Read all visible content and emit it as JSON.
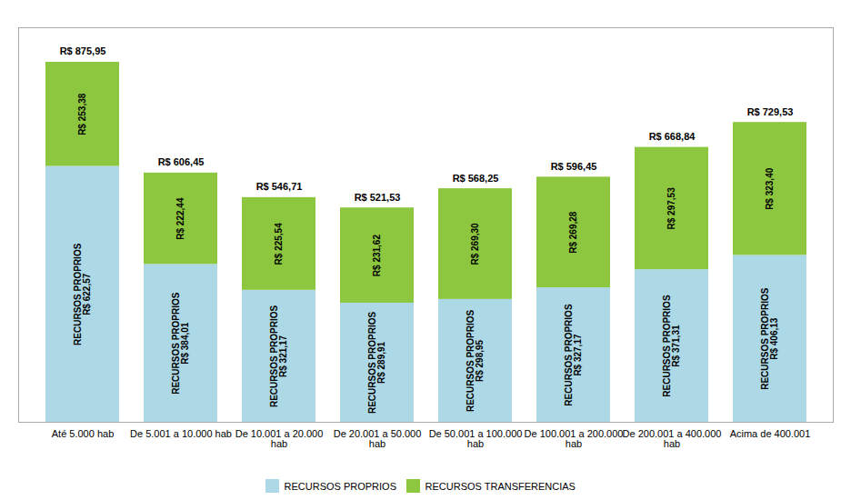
{
  "chart_data": {
    "type": "bar",
    "stacked": true,
    "categories": [
      "Até 5.000 hab",
      "De 5.001 a 10.000 hab",
      "De 10.001 a 20.000\nhab",
      "De 20.001 a 50.000\nhab",
      "De 50.001 a 100.000\nhab",
      "De 100.001 a 200.000\nhab",
      "De 200.001 a 400.000\nhab",
      "Acima de 400.001"
    ],
    "series": [
      {
        "name": "RECURSOS PROPRIOS",
        "color": "#ADD8E6",
        "values": [
          622.57,
          384.01,
          321.17,
          289.91,
          298.95,
          327.17,
          371.31,
          406.13
        ],
        "value_labels": [
          "RECURSOS PROPRIOS\nR$ 622,57",
          "RECURSOS PROPRIOS\nR$ 384,01",
          "RECURSOS PROPRIOS\nR$ 321,17",
          "RECURSOS PROPRIOS\nR$ 289,91",
          "RECURSOS PROPRIOS\nR$ 298,95",
          "RECURSOS PROPRIOS\nR$ 327,17",
          "RECURSOS PROPRIOS\nR$ 371,31",
          "RECURSOS PROPRIOS\nR$ 406,13"
        ]
      },
      {
        "name": "RECURSOS TRANSFERENCIAS",
        "color": "#8DC63F",
        "values": [
          253.38,
          222.44,
          225.54,
          231.62,
          269.3,
          269.28,
          297.53,
          323.4
        ],
        "value_labels": [
          "R$ 253,38",
          "R$ 222,44",
          "R$ 225,54",
          "R$ 231,62",
          "R$ 269,30",
          "R$ 269,28",
          "R$ 297,53",
          "R$ 323,40"
        ]
      }
    ],
    "totals": [
      875.95,
      606.45,
      546.71,
      521.53,
      568.25,
      596.45,
      668.84,
      729.53
    ],
    "total_labels": [
      "R$ 875,95",
      "R$ 606,45",
      "R$ 546,71",
      "R$ 521,53",
      "R$ 568,25",
      "R$ 596,45",
      "R$ 668,84",
      "R$ 729,53"
    ],
    "ylim": [
      0,
      960
    ],
    "data_labels": true,
    "tick_labels": "x",
    "legend": "bottom",
    "grid": false
  }
}
